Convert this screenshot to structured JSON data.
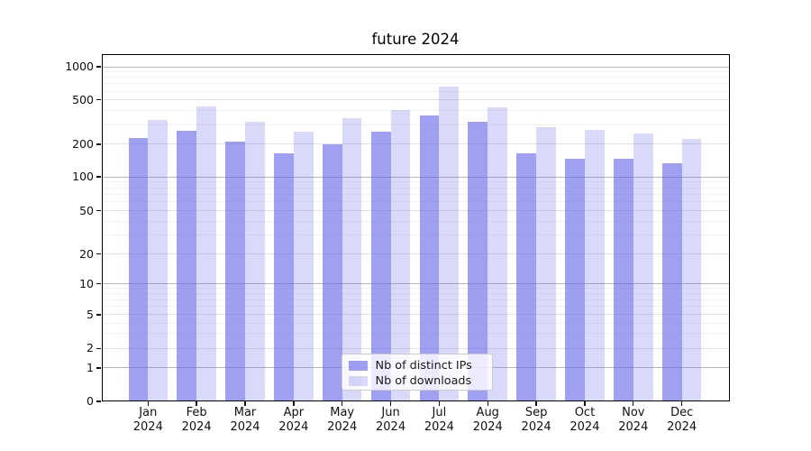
{
  "chart_data": {
    "type": "bar",
    "title": "future 2024",
    "categories": [
      "Jan",
      "Feb",
      "Mar",
      "Apr",
      "May",
      "Jun",
      "Jul",
      "Aug",
      "Sep",
      "Oct",
      "Nov",
      "Dec"
    ],
    "x_year": "2024",
    "series": [
      {
        "name": "Nb of distinct IPs",
        "color": "#6666eb",
        "fill_alpha": 0.62,
        "values": [
          228,
          265,
          210,
          164,
          198,
          259,
          362,
          318,
          166,
          148,
          146,
          133
        ]
      },
      {
        "name": "Nb of downloads",
        "color": "#6666eb",
        "fill_alpha": 0.25,
        "values": [
          332,
          434,
          315,
          258,
          345,
          402,
          657,
          428,
          284,
          269,
          250,
          223
        ]
      }
    ],
    "yscale": "symlog",
    "yticks": [
      0,
      1,
      2,
      5,
      10,
      20,
      50,
      100,
      200,
      500,
      1000
    ],
    "ylim": [
      0,
      1400
    ],
    "grid": true,
    "legend_position": "lower center"
  },
  "colors": {
    "grid_major": "#b5b5b5",
    "grid_mid": "#e2e2e2",
    "grid_minor": "#f2f2f2",
    "spine": "#000000",
    "text": "#1a1a1a",
    "legend_border": "#cccccc"
  }
}
